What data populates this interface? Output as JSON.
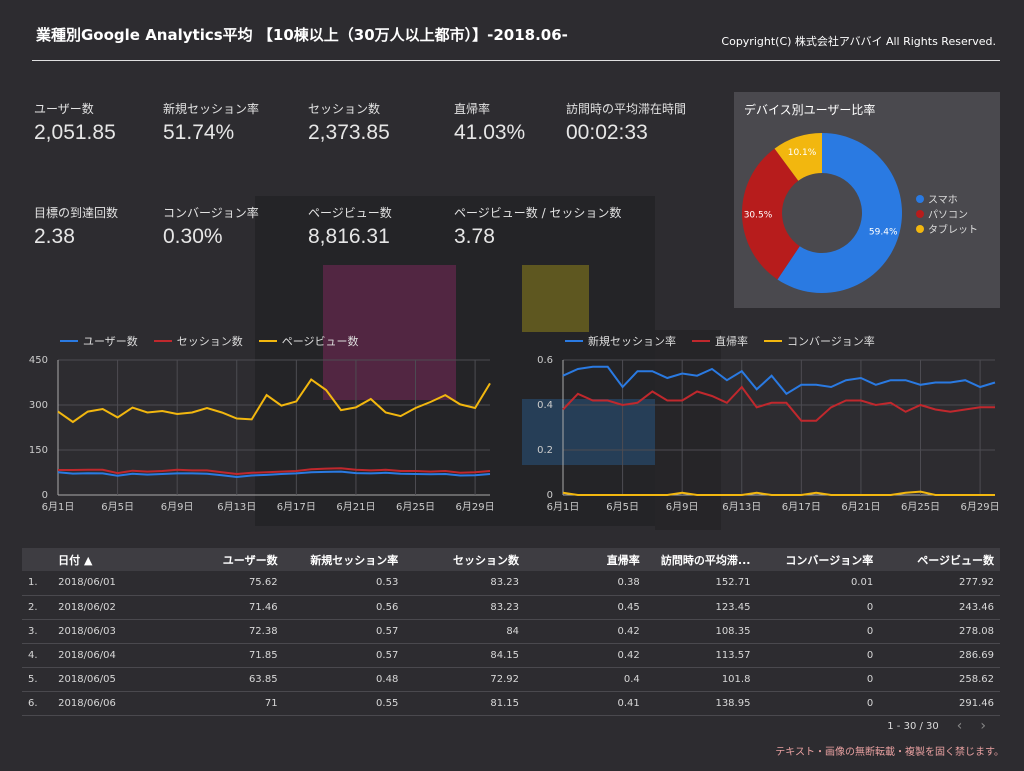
{
  "header": {
    "title": "業種別Google Analytics平均 【10棟以上（30万人以上都市）】-2018.06-",
    "copyright": "Copyright(C) 株式会社アババイ All Rights Reserved."
  },
  "kpis": [
    {
      "label": "ユーザー数",
      "value": "2,051.85"
    },
    {
      "label": "新規セッション率",
      "value": "51.74%"
    },
    {
      "label": "セッション数",
      "value": "2,373.85"
    },
    {
      "label": "直帰率",
      "value": "41.03%"
    },
    {
      "label": "訪問時の平均滞在時間",
      "value": "00:02:33"
    },
    {
      "label": "目標の到達回数",
      "value": "2.38"
    },
    {
      "label": "コンバージョン率",
      "value": "0.30%"
    },
    {
      "label": "ページビュー数",
      "value": "8,816.31"
    },
    {
      "label": "ページビュー数 / セッション数",
      "value": "3.78"
    }
  ],
  "device_panel": {
    "title": "デバイス別ユーザー比率",
    "legend": [
      {
        "name": "スマホ",
        "color": "#2a7ae2"
      },
      {
        "name": "パソコン",
        "color": "#b71c1c"
      },
      {
        "name": "タブレット",
        "color": "#f2b70f"
      }
    ],
    "labels": [
      "59.4%",
      "30.5%",
      "10.1%"
    ]
  },
  "chart_data": [
    {
      "type": "line",
      "x": [
        "6月1日",
        "6月2日",
        "6月3日",
        "6月4日",
        "6月5日",
        "6月6日",
        "6月7日",
        "6月8日",
        "6月9日",
        "6月10日",
        "6月11日",
        "6月12日",
        "6月13日",
        "6月14日",
        "6月15日",
        "6月16日",
        "6月17日",
        "6月18日",
        "6月19日",
        "6月20日",
        "6月21日",
        "6月22日",
        "6月23日",
        "6月24日",
        "6月25日",
        "6月26日",
        "6月27日",
        "6月28日",
        "6月29日",
        "6月30日"
      ],
      "xticks": [
        "6月1日",
        "6月5日",
        "6月9日",
        "6月13日",
        "6月17日",
        "6月21日",
        "6月25日",
        "6月29日"
      ],
      "yticks": [
        "0",
        "150",
        "300",
        "450"
      ],
      "ylim": [
        0,
        450
      ],
      "series": [
        {
          "name": "ユーザー数",
          "color": "#2a7ae2",
          "values": [
            75.62,
            71.46,
            72.38,
            71.85,
            63.85,
            71,
            68,
            70,
            72,
            72,
            71,
            66,
            60,
            65,
            67,
            70,
            72,
            76,
            77,
            78,
            73,
            72,
            74,
            71,
            70,
            69,
            70,
            65,
            66,
            70
          ]
        },
        {
          "name": "セッション数",
          "color": "#c0282d",
          "values": [
            83.23,
            83.23,
            84,
            84.15,
            72.92,
            81.15,
            78,
            80,
            84,
            82,
            82,
            76,
            70,
            74,
            76,
            78,
            80,
            86,
            88,
            89,
            84,
            82,
            84,
            80,
            80,
            78,
            80,
            74,
            76,
            80
          ]
        },
        {
          "name": "ページビュー数",
          "color": "#f2b70f",
          "values": [
            277.92,
            243.46,
            278.08,
            286.69,
            258.62,
            291.46,
            275,
            280,
            270,
            275,
            290,
            275,
            255,
            252,
            333,
            298,
            312,
            385,
            350,
            283,
            292,
            320,
            275,
            263,
            290,
            310,
            333,
            302,
            290,
            372
          ]
        }
      ]
    },
    {
      "type": "line",
      "x": [
        "6月1日",
        "6月2日",
        "6月3日",
        "6月4日",
        "6月5日",
        "6月6日",
        "6月7日",
        "6月8日",
        "6月9日",
        "6月10日",
        "6月11日",
        "6月12日",
        "6月13日",
        "6月14日",
        "6月15日",
        "6月16日",
        "6月17日",
        "6月18日",
        "6月19日",
        "6月20日",
        "6月21日",
        "6月22日",
        "6月23日",
        "6月24日",
        "6月25日",
        "6月26日",
        "6月27日",
        "6月28日",
        "6月29日",
        "6月30日"
      ],
      "xticks": [
        "6月1日",
        "6月5日",
        "6月9日",
        "6月13日",
        "6月17日",
        "6月21日",
        "6月25日",
        "6月29日"
      ],
      "yticks": [
        "0",
        "0.2",
        "0.4",
        "0.6"
      ],
      "ylim": [
        0,
        0.6
      ],
      "series": [
        {
          "name": "新規セッション率",
          "color": "#2a7ae2",
          "values": [
            0.53,
            0.56,
            0.57,
            0.57,
            0.48,
            0.55,
            0.55,
            0.52,
            0.54,
            0.53,
            0.56,
            0.51,
            0.55,
            0.47,
            0.53,
            0.45,
            0.49,
            0.49,
            0.48,
            0.51,
            0.52,
            0.49,
            0.51,
            0.51,
            0.49,
            0.5,
            0.5,
            0.51,
            0.48,
            0.5
          ]
        },
        {
          "name": "直帰率",
          "color": "#c0282d",
          "values": [
            0.38,
            0.45,
            0.42,
            0.42,
            0.4,
            0.41,
            0.46,
            0.42,
            0.42,
            0.46,
            0.44,
            0.41,
            0.48,
            0.39,
            0.41,
            0.41,
            0.33,
            0.33,
            0.39,
            0.42,
            0.42,
            0.4,
            0.41,
            0.37,
            0.4,
            0.38,
            0.37,
            0.38,
            0.39,
            0.39
          ]
        },
        {
          "name": "コンバージョン率",
          "color": "#f2b70f",
          "values": [
            0.01,
            0,
            0,
            0,
            0,
            0,
            0,
            0,
            0.01,
            0,
            0,
            0,
            0,
            0.01,
            0,
            0,
            0,
            0.01,
            0,
            0,
            0,
            0,
            0,
            0.01,
            0.015,
            0,
            0,
            0,
            0,
            0
          ]
        }
      ]
    },
    {
      "type": "pie",
      "title": "デバイス別ユーザー比率",
      "categories": [
        "スマホ",
        "パソコン",
        "タブレット"
      ],
      "values": [
        59.4,
        30.5,
        10.1
      ],
      "colors": [
        "#2a7ae2",
        "#b71c1c",
        "#f2b70f"
      ]
    }
  ],
  "table": {
    "columns": [
      "日付 ▲",
      "ユーザー数",
      "新規セッション率",
      "セッション数",
      "直帰率",
      "訪問時の平均滞...",
      "コンバージョン率",
      "ページビュー数"
    ],
    "rows": [
      [
        "1.",
        "2018/06/01",
        "75.62",
        "0.53",
        "83.23",
        "0.38",
        "152.71",
        "0.01",
        "277.92"
      ],
      [
        "2.",
        "2018/06/02",
        "71.46",
        "0.56",
        "83.23",
        "0.45",
        "123.45",
        "0",
        "243.46"
      ],
      [
        "3.",
        "2018/06/03",
        "72.38",
        "0.57",
        "84",
        "0.42",
        "108.35",
        "0",
        "278.08"
      ],
      [
        "4.",
        "2018/06/04",
        "71.85",
        "0.57",
        "84.15",
        "0.42",
        "113.57",
        "0",
        "286.69"
      ],
      [
        "5.",
        "2018/06/05",
        "63.85",
        "0.48",
        "72.92",
        "0.4",
        "101.8",
        "0",
        "258.62"
      ],
      [
        "6.",
        "2018/06/06",
        "71",
        "0.55",
        "81.15",
        "0.41",
        "138.95",
        "0",
        "291.46"
      ]
    ]
  },
  "pager": {
    "range": "1 - 30 / 30",
    "prev": "‹",
    "next": "›"
  },
  "footer": "テキスト・画像の無断転載・複製を固く禁じます。"
}
